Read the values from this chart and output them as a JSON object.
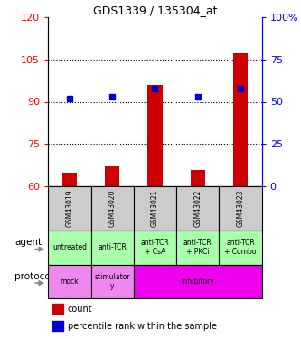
{
  "title": "GDS1339 / 135304_at",
  "samples": [
    "GSM43019",
    "GSM43020",
    "GSM43021",
    "GSM43022",
    "GSM43023"
  ],
  "counts": [
    65,
    67,
    96,
    66,
    107
  ],
  "percentiles": [
    52,
    53,
    58,
    53,
    58
  ],
  "ylim_left": [
    60,
    120
  ],
  "ylim_right": [
    0,
    100
  ],
  "yticks_left": [
    60,
    75,
    90,
    105,
    120
  ],
  "yticks_right": [
    0,
    25,
    50,
    75,
    100
  ],
  "ytick_labels_right": [
    "0",
    "25",
    "50",
    "75",
    "100%"
  ],
  "hlines": [
    75,
    90,
    105
  ],
  "bar_color": "#cc0000",
  "dot_color": "#0000cc",
  "bar_bottom": 60,
  "agent_labels": [
    "untreated",
    "anti-TCR",
    "anti-TCR\n+ CsA",
    "anti-TCR\n+ PKCi",
    "anti-TCR\n+ Combo"
  ],
  "agent_color": "#aaffaa",
  "protocol_colors": [
    "#ee88ee",
    "#ee88ee",
    "#ee00ee"
  ],
  "protocol_texts": [
    "mock",
    "stimulator\ny",
    "inhibitory"
  ],
  "protocol_spans": [
    1,
    1,
    3
  ],
  "sample_bg_color": "#cccccc",
  "legend_count_color": "#cc0000",
  "legend_pct_color": "#0000cc",
  "bar_width": 0.35
}
